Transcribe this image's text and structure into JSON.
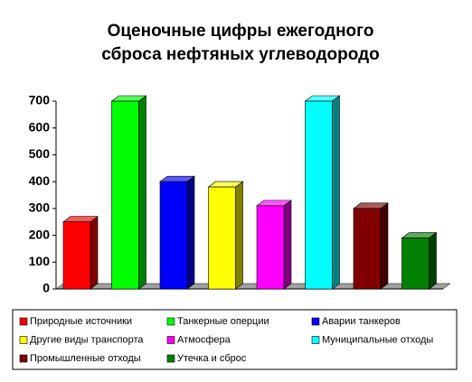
{
  "chart_data": {
    "type": "bar",
    "title": [
      "Оценочные цифры ежегодного",
      "сброса нефтяных углеводородо"
    ],
    "ylim": [
      0,
      700
    ],
    "yticks": [
      0,
      100,
      200,
      300,
      400,
      500,
      600,
      700
    ],
    "series": [
      {
        "name": "Природные источники",
        "color": "#ff0000",
        "values": [
          250
        ]
      },
      {
        "name": "Танкерные оперции",
        "color": "#00ff00",
        "values": [
          700
        ]
      },
      {
        "name": "Аварии танкеров",
        "color": "#0000ff",
        "values": [
          400
        ]
      },
      {
        "name": "Другие виды транспорта",
        "color": "#ffff00",
        "values": [
          380
        ]
      },
      {
        "name": "Атмосфера",
        "color": "#ff00ff",
        "values": [
          310
        ]
      },
      {
        "name": "Муниципальные отходы",
        "color": "#00ffff",
        "values": [
          700
        ]
      },
      {
        "name": "Промышленные отходы",
        "color": "#800000",
        "values": [
          300
        ]
      },
      {
        "name": "Утечка и сброс",
        "color": "#008000",
        "values": [
          190
        ]
      }
    ]
  }
}
